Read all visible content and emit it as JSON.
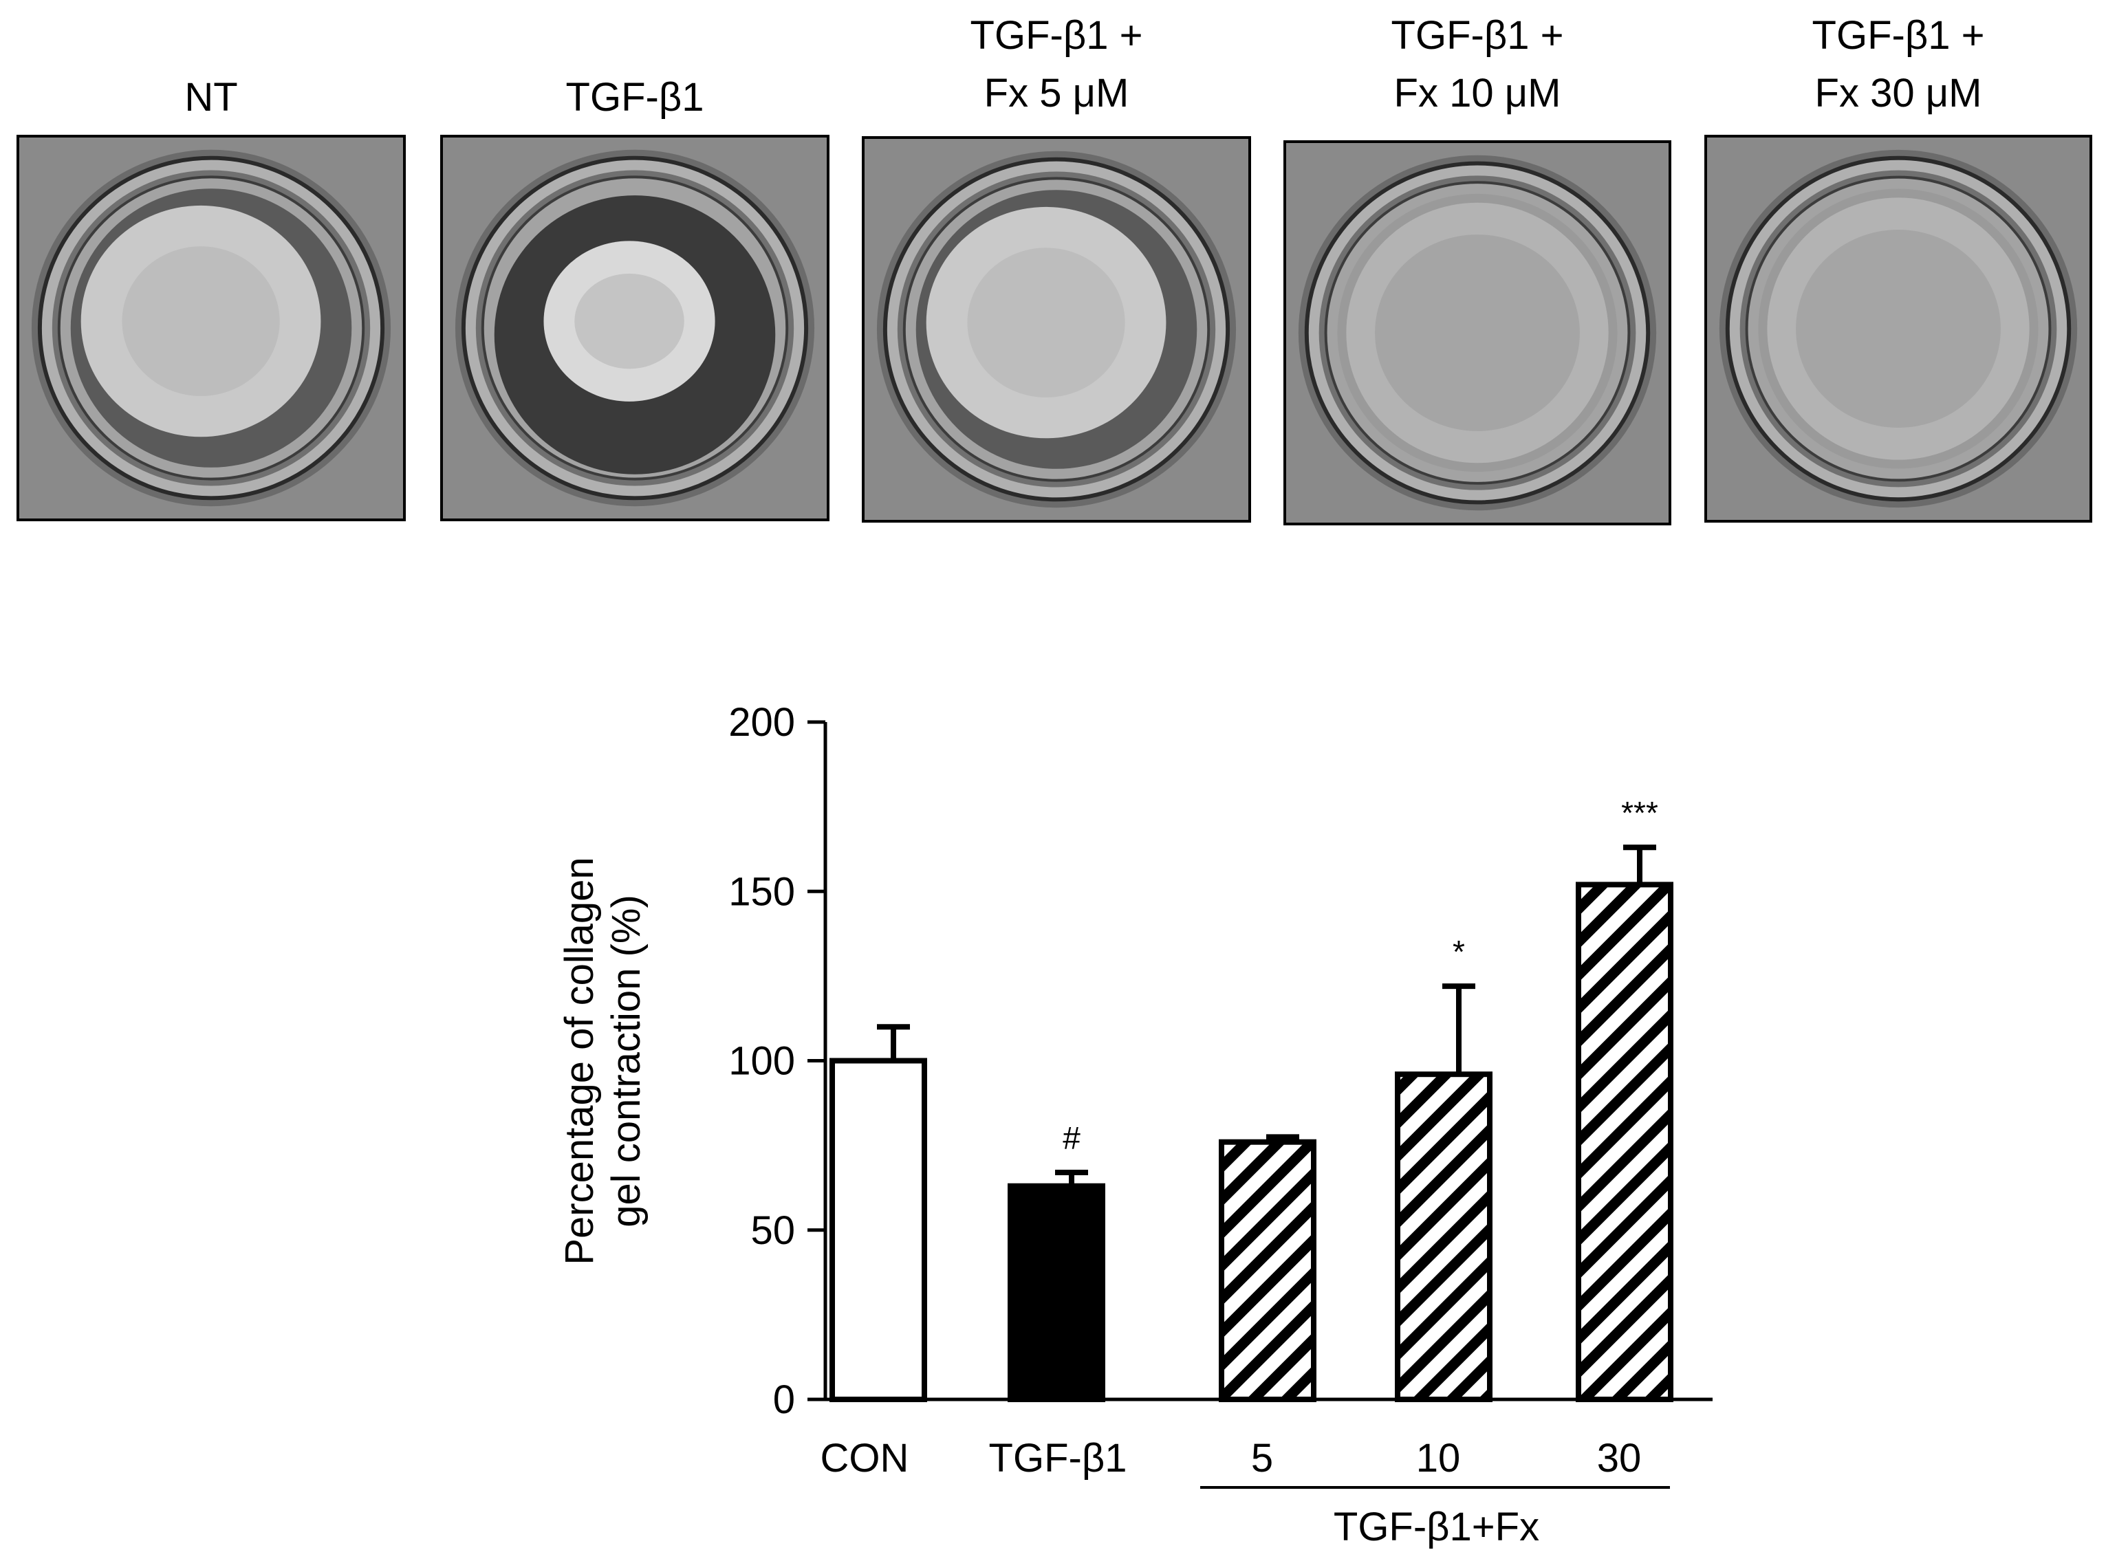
{
  "panels": [
    {
      "label": "NT",
      "gel": "relaxed"
    },
    {
      "label": "TGF-β1",
      "gel": "contracted"
    },
    {
      "label": "TGF-β1 +\nFx 5 μM",
      "gel": "relaxed"
    },
    {
      "label": "TGF-β1 +\nFx 10 μM",
      "gel": "spread"
    },
    {
      "label": "TGF-β1 +\nFx 30 μM",
      "gel": "spread"
    }
  ],
  "chart_data": {
    "type": "bar",
    "ylabel_lines": [
      "Percentage of collagen",
      "gel contraction (%)"
    ],
    "ylim": [
      0,
      200
    ],
    "yticks": [
      0,
      50,
      100,
      150,
      200
    ],
    "categories": [
      "CON",
      "TGF-β1",
      "5",
      "10",
      "30"
    ],
    "values": [
      100,
      63,
      76,
      96,
      152
    ],
    "errors": [
      10,
      4,
      1.5,
      26,
      11
    ],
    "fills": [
      "white",
      "black",
      "hatched",
      "hatched",
      "hatched"
    ],
    "annotations": [
      "",
      "#",
      "",
      "*",
      "***"
    ],
    "group_label": "TGF-β1+Fx",
    "group_span": [
      2,
      4
    ]
  }
}
